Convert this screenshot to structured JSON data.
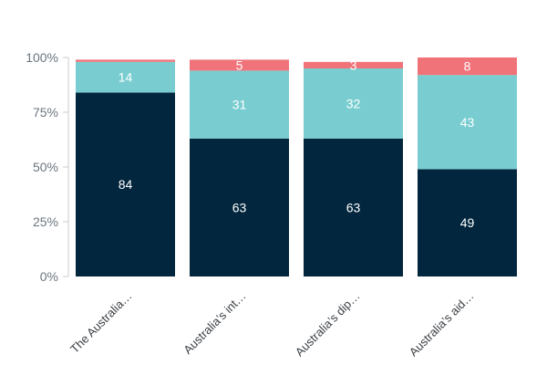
{
  "chart_data": {
    "type": "bar",
    "stacked": true,
    "categories": [
      "The Australia…",
      "Australia’s int…",
      "Australia’s dip…",
      "Australia’s aid…"
    ],
    "series": [
      {
        "color": "#02263d",
        "values": [
          84,
          63,
          63,
          49
        ]
      },
      {
        "color": "#79cdd0",
        "values": [
          14,
          31,
          32,
          43
        ]
      },
      {
        "color": "#f0737a",
        "values": [
          1,
          5,
          3,
          8
        ]
      }
    ],
    "ylim": [
      0,
      100
    ],
    "yticks": [
      "0%",
      "25%",
      "50%",
      "75%",
      "100%"
    ],
    "data_labels": [
      [
        "84",
        "63",
        "63",
        "49"
      ],
      [
        "14",
        "31",
        "32",
        "43"
      ],
      [
        "",
        "5",
        "3",
        "8"
      ]
    ],
    "grid": false,
    "legend": "none"
  }
}
